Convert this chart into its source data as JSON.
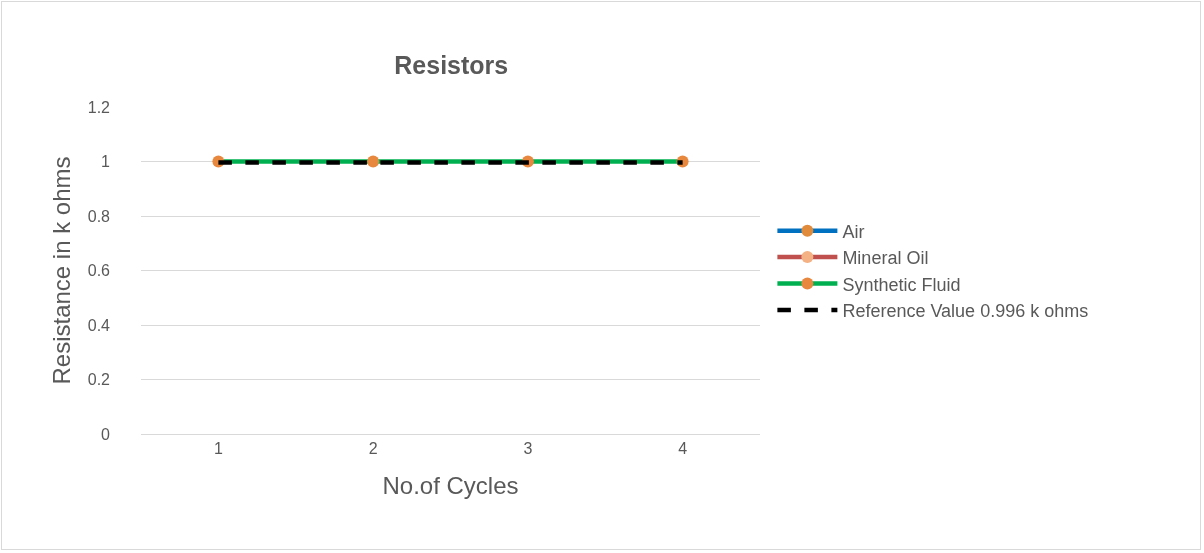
{
  "chart_data": {
    "type": "line",
    "title": "Resistors",
    "xlabel": "No.of Cycles",
    "ylabel": "Resistance in k ohms",
    "categories": [
      "1",
      "2",
      "3",
      "4"
    ],
    "series": [
      {
        "name": "Air",
        "color": "#0070c0",
        "colors": [
          "#e08a3c",
          "#e08a3c",
          "#e08a3c",
          "#e08a3c"
        ],
        "values": [
          null,
          null,
          null,
          null
        ]
      },
      {
        "name": "Mineral Oil",
        "color": "#c0504d",
        "colors": [
          "#f4b183",
          "#f4b183",
          "#f4b183",
          "#f4b183"
        ],
        "values": [
          null,
          null,
          null,
          null
        ]
      },
      {
        "name": "Synthetic Fluid",
        "color": "#00b050",
        "colors": [
          "#e8883e",
          "#e8883e",
          "#e8883e",
          "#e8883e"
        ],
        "values": [
          1,
          1,
          1,
          1
        ]
      },
      {
        "name": "Reference Value 0.996 k ohms",
        "color": "#000000",
        "marker": "none",
        "line_style": "dashed",
        "values": [
          0.996,
          0.996,
          0.996,
          0.996
        ]
      }
    ],
    "ylim": [
      0,
      1.2
    ],
    "yticks": [
      0,
      0.2,
      0.4,
      0.6,
      0.8,
      1,
      1.2
    ],
    "grid": "y",
    "legend": "right",
    "marker": "circle",
    "line_style": "solid"
  }
}
